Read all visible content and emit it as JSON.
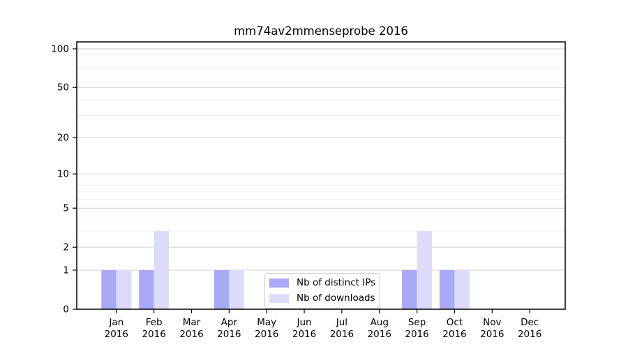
{
  "title": "mm74av2mmenseprobe 2016",
  "chart_data": {
    "type": "bar",
    "title": "mm74av2mmenseprobe 2016",
    "xlabel": "",
    "ylabel": "",
    "scale": "log1p",
    "grid": "on",
    "legend_position": "lower center inside",
    "categories": [
      "Jan 2016",
      "Feb 2016",
      "Mar 2016",
      "Apr 2016",
      "May 2016",
      "Jun 2016",
      "Jul 2016",
      "Aug 2016",
      "Sep 2016",
      "Oct 2016",
      "Nov 2016",
      "Dec 2016"
    ],
    "series": [
      {
        "name": "Nb of distinct IPs",
        "color": "#a9a9f7",
        "values": [
          1,
          1,
          0,
          1,
          0,
          0,
          0,
          0,
          1,
          1,
          0,
          0
        ]
      },
      {
        "name": "Nb of downloads",
        "color": "#dcdcfa",
        "values": [
          1,
          3,
          0,
          1,
          0,
          0,
          0,
          0,
          3,
          1,
          0,
          0
        ]
      }
    ],
    "yticks": [
      0,
      1,
      2,
      5,
      10,
      20,
      50,
      100
    ],
    "ytick_labels": [
      "0",
      "1",
      "2",
      "5",
      "10",
      "20",
      "50",
      "100"
    ],
    "minor_ticks": [
      3,
      4,
      6,
      7,
      8,
      9,
      30,
      40,
      60,
      70,
      80,
      90
    ],
    "ylim": [
      0,
      113
    ]
  },
  "colors": {
    "background": "#ffffff",
    "axis": "#000000",
    "grid_major": "#d2d2d2",
    "grid_top": "#c4c4c4",
    "grid_minor": "#efefef",
    "bar_distinct_ips": "#a9a9f7",
    "bar_downloads": "#dcdcfa",
    "text": "#000000"
  }
}
